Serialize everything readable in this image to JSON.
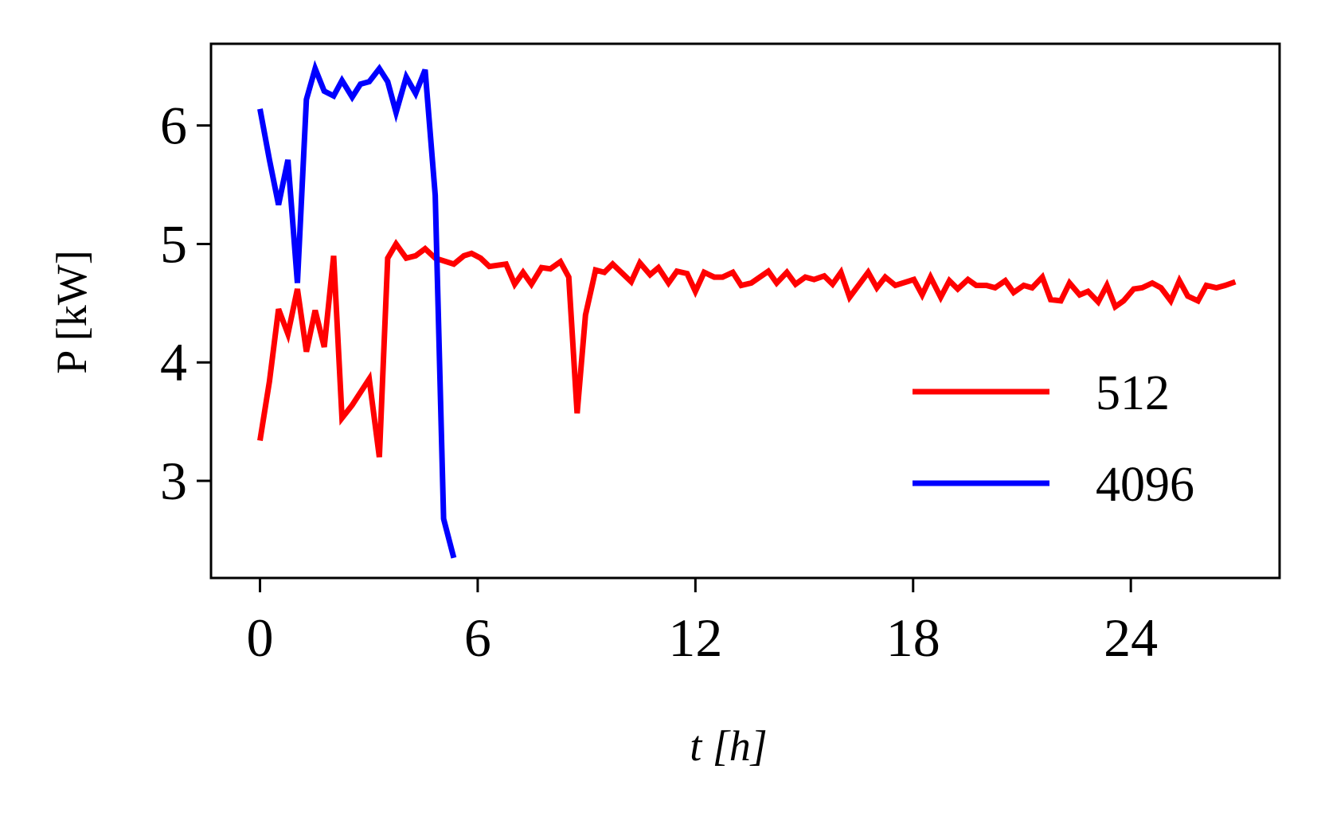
{
  "chart_data": {
    "type": "line",
    "xlabel": "t [h]",
    "ylabel": "P [kW]",
    "xlim": [
      -1.35,
      28.1
    ],
    "ylim": [
      2.18,
      6.69
    ],
    "xticks": [
      0,
      6,
      12,
      18,
      24
    ],
    "yticks": [
      3,
      4,
      5,
      6
    ],
    "grid": false,
    "legend": "lower right",
    "series": [
      {
        "name": "512",
        "color": "#ff0000",
        "x": [
          0,
          0.26,
          0.51,
          0.77,
          1.03,
          1.28,
          1.52,
          1.77,
          2.03,
          2.26,
          2.54,
          3.01,
          3.29,
          3.52,
          3.75,
          4.03,
          4.29,
          4.55,
          4.83,
          5.34,
          5.62,
          5.83,
          6.08,
          6.32,
          6.78,
          7.02,
          7.25,
          7.48,
          7.76,
          8.0,
          8.28,
          8.51,
          8.74,
          8.97,
          9.25,
          9.49,
          9.72,
          10.23,
          10.47,
          10.75,
          10.98,
          11.26,
          11.49,
          11.77,
          12.0,
          12.24,
          12.52,
          12.75,
          13.03,
          13.26,
          13.54,
          14.01,
          14.24,
          14.52,
          14.76,
          15.03,
          15.27,
          15.55,
          15.78,
          16.01,
          16.25,
          16.76,
          17.0,
          17.23,
          17.51,
          18.02,
          18.25,
          18.48,
          18.76,
          19.0,
          19.23,
          19.51,
          19.74,
          20.02,
          20.26,
          20.54,
          20.77,
          21.05,
          21.28,
          21.56,
          21.79,
          22.07,
          22.31,
          22.59,
          22.82,
          23.1,
          23.34,
          23.57,
          23.8,
          24.08,
          24.31,
          24.59,
          24.83,
          25.1,
          25.34,
          25.57,
          25.85,
          26.08,
          26.36,
          26.6,
          26.88
        ],
        "values": [
          3.34,
          3.84,
          4.45,
          4.24,
          4.62,
          4.09,
          4.44,
          4.13,
          4.9,
          3.53,
          3.64,
          3.86,
          3.2,
          4.88,
          5.0,
          4.88,
          4.9,
          4.96,
          4.88,
          4.83,
          4.9,
          4.92,
          4.88,
          4.81,
          4.83,
          4.66,
          4.76,
          4.66,
          4.8,
          4.79,
          4.85,
          4.72,
          3.57,
          4.4,
          4.78,
          4.76,
          4.83,
          4.68,
          4.84,
          4.74,
          4.8,
          4.67,
          4.77,
          4.75,
          4.6,
          4.76,
          4.72,
          4.72,
          4.76,
          4.65,
          4.67,
          4.77,
          4.67,
          4.76,
          4.66,
          4.72,
          4.7,
          4.73,
          4.66,
          4.76,
          4.55,
          4.76,
          4.63,
          4.72,
          4.65,
          4.7,
          4.57,
          4.72,
          4.55,
          4.69,
          4.62,
          4.7,
          4.65,
          4.65,
          4.63,
          4.69,
          4.59,
          4.65,
          4.63,
          4.72,
          4.53,
          4.52,
          4.67,
          4.57,
          4.6,
          4.51,
          4.65,
          4.47,
          4.52,
          4.62,
          4.63,
          4.67,
          4.63,
          4.52,
          4.69,
          4.56,
          4.52,
          4.65,
          4.63,
          4.65,
          4.68
        ]
      },
      {
        "name": "4096",
        "color": "#0000ff",
        "x": [
          0,
          0.26,
          0.51,
          0.77,
          1.03,
          1.28,
          1.52,
          1.77,
          2.03,
          2.26,
          2.54,
          2.77,
          3.01,
          3.29,
          3.52,
          3.75,
          4.03,
          4.29,
          4.55,
          4.83,
          5.06,
          5.34
        ],
        "values": [
          6.14,
          5.71,
          5.33,
          5.71,
          4.67,
          6.22,
          6.48,
          6.29,
          6.25,
          6.38,
          6.24,
          6.35,
          6.37,
          6.48,
          6.37,
          6.11,
          6.41,
          6.27,
          6.47,
          5.41,
          2.68,
          2.35
        ]
      }
    ]
  }
}
